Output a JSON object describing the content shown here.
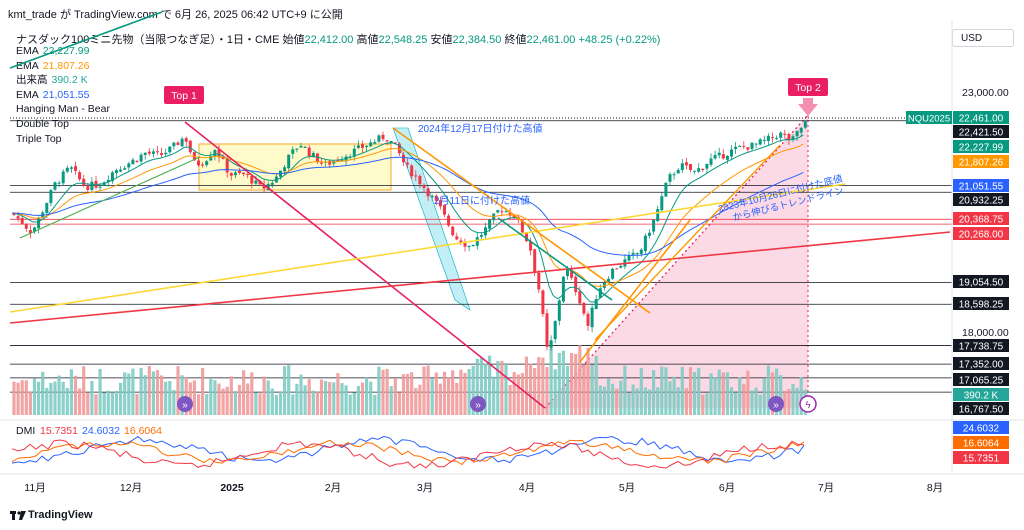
{
  "header": {
    "author": "kmt_trade",
    "text": "kmt_trade が TradingView.com で 6月 26, 2025 06:42 UTC+9 に公開"
  },
  "title": {
    "symbol": "ナスダック100ミニ先物（当限つなぎ足）・1日・CME",
    "open_label": "始値",
    "open": "22,412.00",
    "high_label": "高値",
    "high": "22,548.25",
    "low_label": "安値",
    "low": "22,384.50",
    "close_label": "終値",
    "close": "22,461.00",
    "change": "+48.25 (+0.22%)"
  },
  "legend": [
    {
      "label": "EMA",
      "value": "22,227.99",
      "color": "#089981"
    },
    {
      "label": "EMA",
      "value": "21,807.26",
      "color": "#ff9800"
    },
    {
      "label": "出来高",
      "value": "390.2 K",
      "color": "#26a69a"
    },
    {
      "label": "EMA",
      "value": "21,051.55",
      "color": "#2962ff"
    },
    {
      "label": "Hanging Man - Bear",
      "value": "",
      "color": "#131722"
    },
    {
      "label": "Double Top",
      "value": "",
      "color": "#131722"
    },
    {
      "label": "Triple Top",
      "value": "",
      "color": "#131722"
    }
  ],
  "currency_button": "USD",
  "footer": {
    "brand": "TradingView"
  },
  "chart_data": {
    "type": "candlestick",
    "ylim": [
      16400,
      23600
    ],
    "y_ticks": [
      "23,000.00",
      "18,000.00"
    ],
    "x_ticks": [
      "11月",
      "12月",
      "2025",
      "2月",
      "3月",
      "4月",
      "5月",
      "6月",
      "7月",
      "8月"
    ],
    "price_labels": [
      {
        "value": "22,461.00",
        "color": "#089981",
        "tag": "NQU2025"
      },
      {
        "value": "22,421.50",
        "color": "#131722"
      },
      {
        "value": "22,227.99",
        "color": "#089981"
      },
      {
        "value": "21,807.26",
        "color": "#ff9800"
      },
      {
        "value": "21,051.55",
        "color": "#2962ff"
      },
      {
        "value": "20,932.25",
        "color": "#131722"
      },
      {
        "value": "20,368.75",
        "color": "#f23645"
      },
      {
        "value": "20,268.00",
        "color": "#f23645"
      },
      {
        "value": "19,054.50",
        "color": "#131722"
      },
      {
        "value": "18,598.25",
        "color": "#131722"
      },
      {
        "value": "17,738.75",
        "color": "#131722"
      },
      {
        "value": "17,352.00",
        "color": "#131722"
      },
      {
        "value": "17,065.25",
        "color": "#131722"
      },
      {
        "value": "390.2 K",
        "color": "#26a69a"
      },
      {
        "value": "16,767.50",
        "color": "#131722"
      }
    ],
    "annotations": {
      "top1": "Top 1",
      "top2": "Top 2",
      "dec17": "2024年12月17日付けた高値",
      "feb11": "2月11日に付けた高値",
      "trend1": "2023年10月26日に付けた底値",
      "trend2": "から伸びるトレンドライン"
    },
    "dmi": {
      "label": "DMI",
      "values": [
        "15.7351",
        "24.6032",
        "16.6064"
      ],
      "colors": [
        "#f23645",
        "#2962ff",
        "#ff6d00"
      ]
    }
  }
}
